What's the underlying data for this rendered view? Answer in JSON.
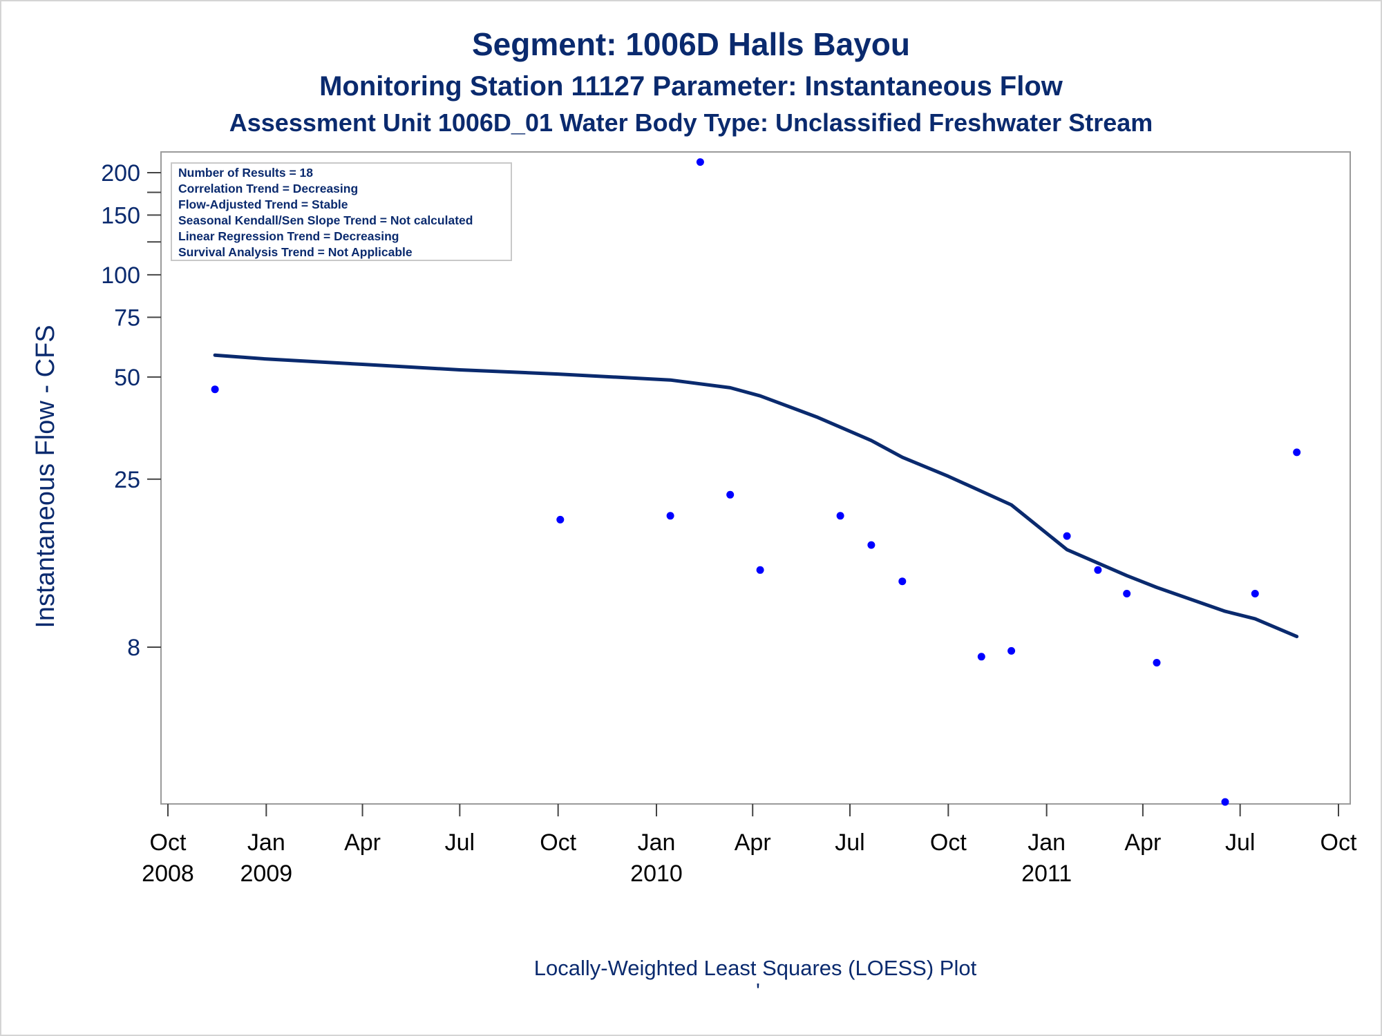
{
  "chart_data": {
    "type": "scatter",
    "title": "Segment: 1006D  Halls Bayou",
    "subtitle": "Monitoring Station 11127 Parameter: Instantaneous Flow",
    "subtitle2": "Assessment Unit 1006D_01   Water Body Type: Unclassified Freshwater Stream",
    "ylabel": "Instantaneous Flow - CFS",
    "footnote": "Locally-Weighted Least Squares (LOESS) Plot",
    "footnote_mark": "'",
    "y_scale": "log",
    "ylim": [
      2.5,
      230
    ],
    "xlim": [
      "2008-10-01",
      "2011-10-01"
    ],
    "y_ticks": [
      {
        "value": 200,
        "label": "200"
      },
      {
        "value": 150,
        "label": "150"
      },
      {
        "value": 100,
        "label": "100"
      },
      {
        "value": 75,
        "label": "75"
      },
      {
        "value": 50,
        "label": "50"
      },
      {
        "value": 25,
        "label": "25"
      },
      {
        "value": 8,
        "label": "8"
      }
    ],
    "y_minor_ticks": [
      175,
      125
    ],
    "x_ticks": [
      {
        "date": "2008-10-01",
        "line1": "Oct",
        "line2": "2008"
      },
      {
        "date": "2009-01-01",
        "line1": "Jan",
        "line2": "2009"
      },
      {
        "date": "2009-04-01",
        "line1": "Apr",
        "line2": ""
      },
      {
        "date": "2009-07-01",
        "line1": "Jul",
        "line2": ""
      },
      {
        "date": "2009-10-01",
        "line1": "Oct",
        "line2": ""
      },
      {
        "date": "2010-01-01",
        "line1": "Jan",
        "line2": "2010"
      },
      {
        "date": "2010-04-01",
        "line1": "Apr",
        "line2": ""
      },
      {
        "date": "2010-07-01",
        "line1": "Jul",
        "line2": ""
      },
      {
        "date": "2010-10-01",
        "line1": "Oct",
        "line2": ""
      },
      {
        "date": "2011-01-01",
        "line1": "Jan",
        "line2": "2011"
      },
      {
        "date": "2011-04-01",
        "line1": "Apr",
        "line2": ""
      },
      {
        "date": "2011-07-01",
        "line1": "Jul",
        "line2": ""
      },
      {
        "date": "2011-10-01",
        "line1": "Oct",
        "line2": ""
      }
    ],
    "series": [
      {
        "type": "scatter",
        "color": "#0000ff",
        "points": [
          {
            "x": "2008-11-14",
            "y": 46
          },
          {
            "x": "2009-10-03",
            "y": 19
          },
          {
            "x": "2010-01-14",
            "y": 19.5
          },
          {
            "x": "2010-02-11",
            "y": 215
          },
          {
            "x": "2010-03-11",
            "y": 22.5
          },
          {
            "x": "2010-04-08",
            "y": 13.5
          },
          {
            "x": "2010-06-22",
            "y": 19.5
          },
          {
            "x": "2010-07-21",
            "y": 16
          },
          {
            "x": "2010-08-19",
            "y": 12.5
          },
          {
            "x": "2010-11-01",
            "y": 7.5
          },
          {
            "x": "2010-11-29",
            "y": 7.8
          },
          {
            "x": "2011-01-20",
            "y": 17
          },
          {
            "x": "2011-02-18",
            "y": 13.5
          },
          {
            "x": "2011-03-17",
            "y": 11.5
          },
          {
            "x": "2011-04-14",
            "y": 7.2
          },
          {
            "x": "2011-06-17",
            "y": 2.8
          },
          {
            "x": "2011-07-15",
            "y": 11.5
          },
          {
            "x": "2011-08-23",
            "y": 30
          }
        ]
      },
      {
        "type": "line",
        "color": "#0a2a6e",
        "points": [
          {
            "x": "2008-11-14",
            "y": 58
          },
          {
            "x": "2009-01-01",
            "y": 56.5
          },
          {
            "x": "2009-04-01",
            "y": 54.5
          },
          {
            "x": "2009-07-01",
            "y": 52.5
          },
          {
            "x": "2009-10-01",
            "y": 51
          },
          {
            "x": "2010-01-14",
            "y": 49
          },
          {
            "x": "2010-03-11",
            "y": 46.5
          },
          {
            "x": "2010-04-08",
            "y": 44
          },
          {
            "x": "2010-06-01",
            "y": 38
          },
          {
            "x": "2010-07-21",
            "y": 32.5
          },
          {
            "x": "2010-08-19",
            "y": 29
          },
          {
            "x": "2010-10-01",
            "y": 25.5
          },
          {
            "x": "2010-11-29",
            "y": 21
          },
          {
            "x": "2011-01-20",
            "y": 15.5
          },
          {
            "x": "2011-03-17",
            "y": 13
          },
          {
            "x": "2011-04-14",
            "y": 12
          },
          {
            "x": "2011-06-17",
            "y": 10.2
          },
          {
            "x": "2011-07-15",
            "y": 9.7
          },
          {
            "x": "2011-08-23",
            "y": 8.6
          }
        ]
      }
    ],
    "legend_box": [
      "Number of Results = 18",
      "Correlation Trend = Decreasing",
      "Flow-Adjusted Trend = Stable",
      "Seasonal Kendall/Sen Slope Trend = Not calculated",
      "Linear Regression Trend = Decreasing",
      "Survival Analysis Trend = Not Applicable"
    ],
    "legend_placement": "top-left",
    "grid": false
  }
}
